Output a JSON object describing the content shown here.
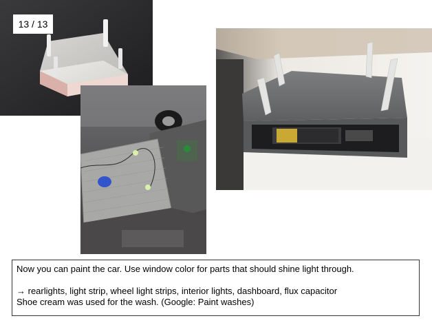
{
  "slide": {
    "counter": "13 / 13"
  },
  "photos": [
    {
      "name": "printed-base-with-pegs-photo"
    },
    {
      "name": "painted-car-chassis-with-lights-photo"
    },
    {
      "name": "battery-housing-photo"
    }
  ],
  "caption": {
    "line1": "Now you can paint the car. Use window color for parts that should shine light through.",
    "line2": "→ rearlights, light strip, wheel light strips, interior lights, dashboard, flux capacitor",
    "line3": "Shoe cream was used for the wash. (Google: Paint washes)"
  }
}
